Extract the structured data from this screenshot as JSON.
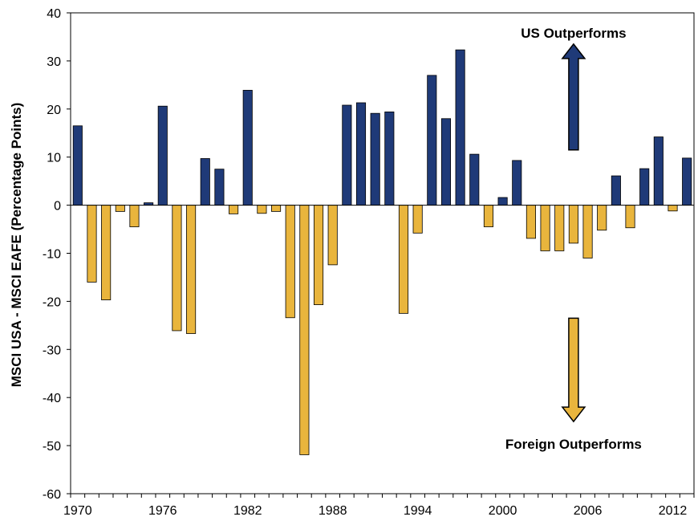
{
  "chart_data": {
    "type": "bar",
    "title": "",
    "xlabel": "",
    "ylabel": "MSCI USA - MSCI EAFE (Percentage Points)",
    "ylim": [
      -60,
      40
    ],
    "yticks": [
      40,
      30,
      20,
      10,
      0,
      -10,
      -20,
      -30,
      -40,
      -50,
      -60
    ],
    "xticks": [
      1970,
      1976,
      1982,
      1988,
      1994,
      2000,
      2006,
      2012
    ],
    "grid": false,
    "legend": "none",
    "colors": {
      "positive": "#1f3a78",
      "negative": "#e9b53d",
      "outline": "#000000"
    },
    "categories": [
      1970,
      1971,
      1972,
      1973,
      1974,
      1975,
      1976,
      1977,
      1978,
      1979,
      1980,
      1981,
      1982,
      1983,
      1984,
      1985,
      1986,
      1987,
      1988,
      1989,
      1990,
      1991,
      1992,
      1993,
      1994,
      1995,
      1996,
      1997,
      1998,
      1999,
      2000,
      2001,
      2002,
      2003,
      2004,
      2005,
      2006,
      2007,
      2008,
      2009,
      2010,
      2011,
      2012,
      2013
    ],
    "values": [
      16.5,
      -16.0,
      -19.7,
      -1.3,
      -4.5,
      0.5,
      20.6,
      -26.1,
      -26.7,
      9.7,
      7.5,
      -1.8,
      23.9,
      -1.7,
      -1.3,
      -23.4,
      -51.9,
      -20.7,
      -12.4,
      20.8,
      21.3,
      19.1,
      19.4,
      -22.5,
      -5.8,
      27.0,
      18.0,
      32.3,
      10.6,
      -4.5,
      1.6,
      9.3,
      -6.9,
      -9.5,
      -9.5,
      -7.9,
      -11.0,
      -5.2,
      6.1,
      -4.7,
      7.6,
      14.2,
      -1.2,
      9.8
    ],
    "annotations": [
      {
        "text": "US Outperforms",
        "direction": "up",
        "x": 2005.0,
        "y_from": 11.5,
        "y_to": 33.5
      },
      {
        "text": "Foreign Outperforms",
        "direction": "down",
        "x": 2005.0,
        "y_from": -23.5,
        "y_to": -45.0
      }
    ]
  }
}
